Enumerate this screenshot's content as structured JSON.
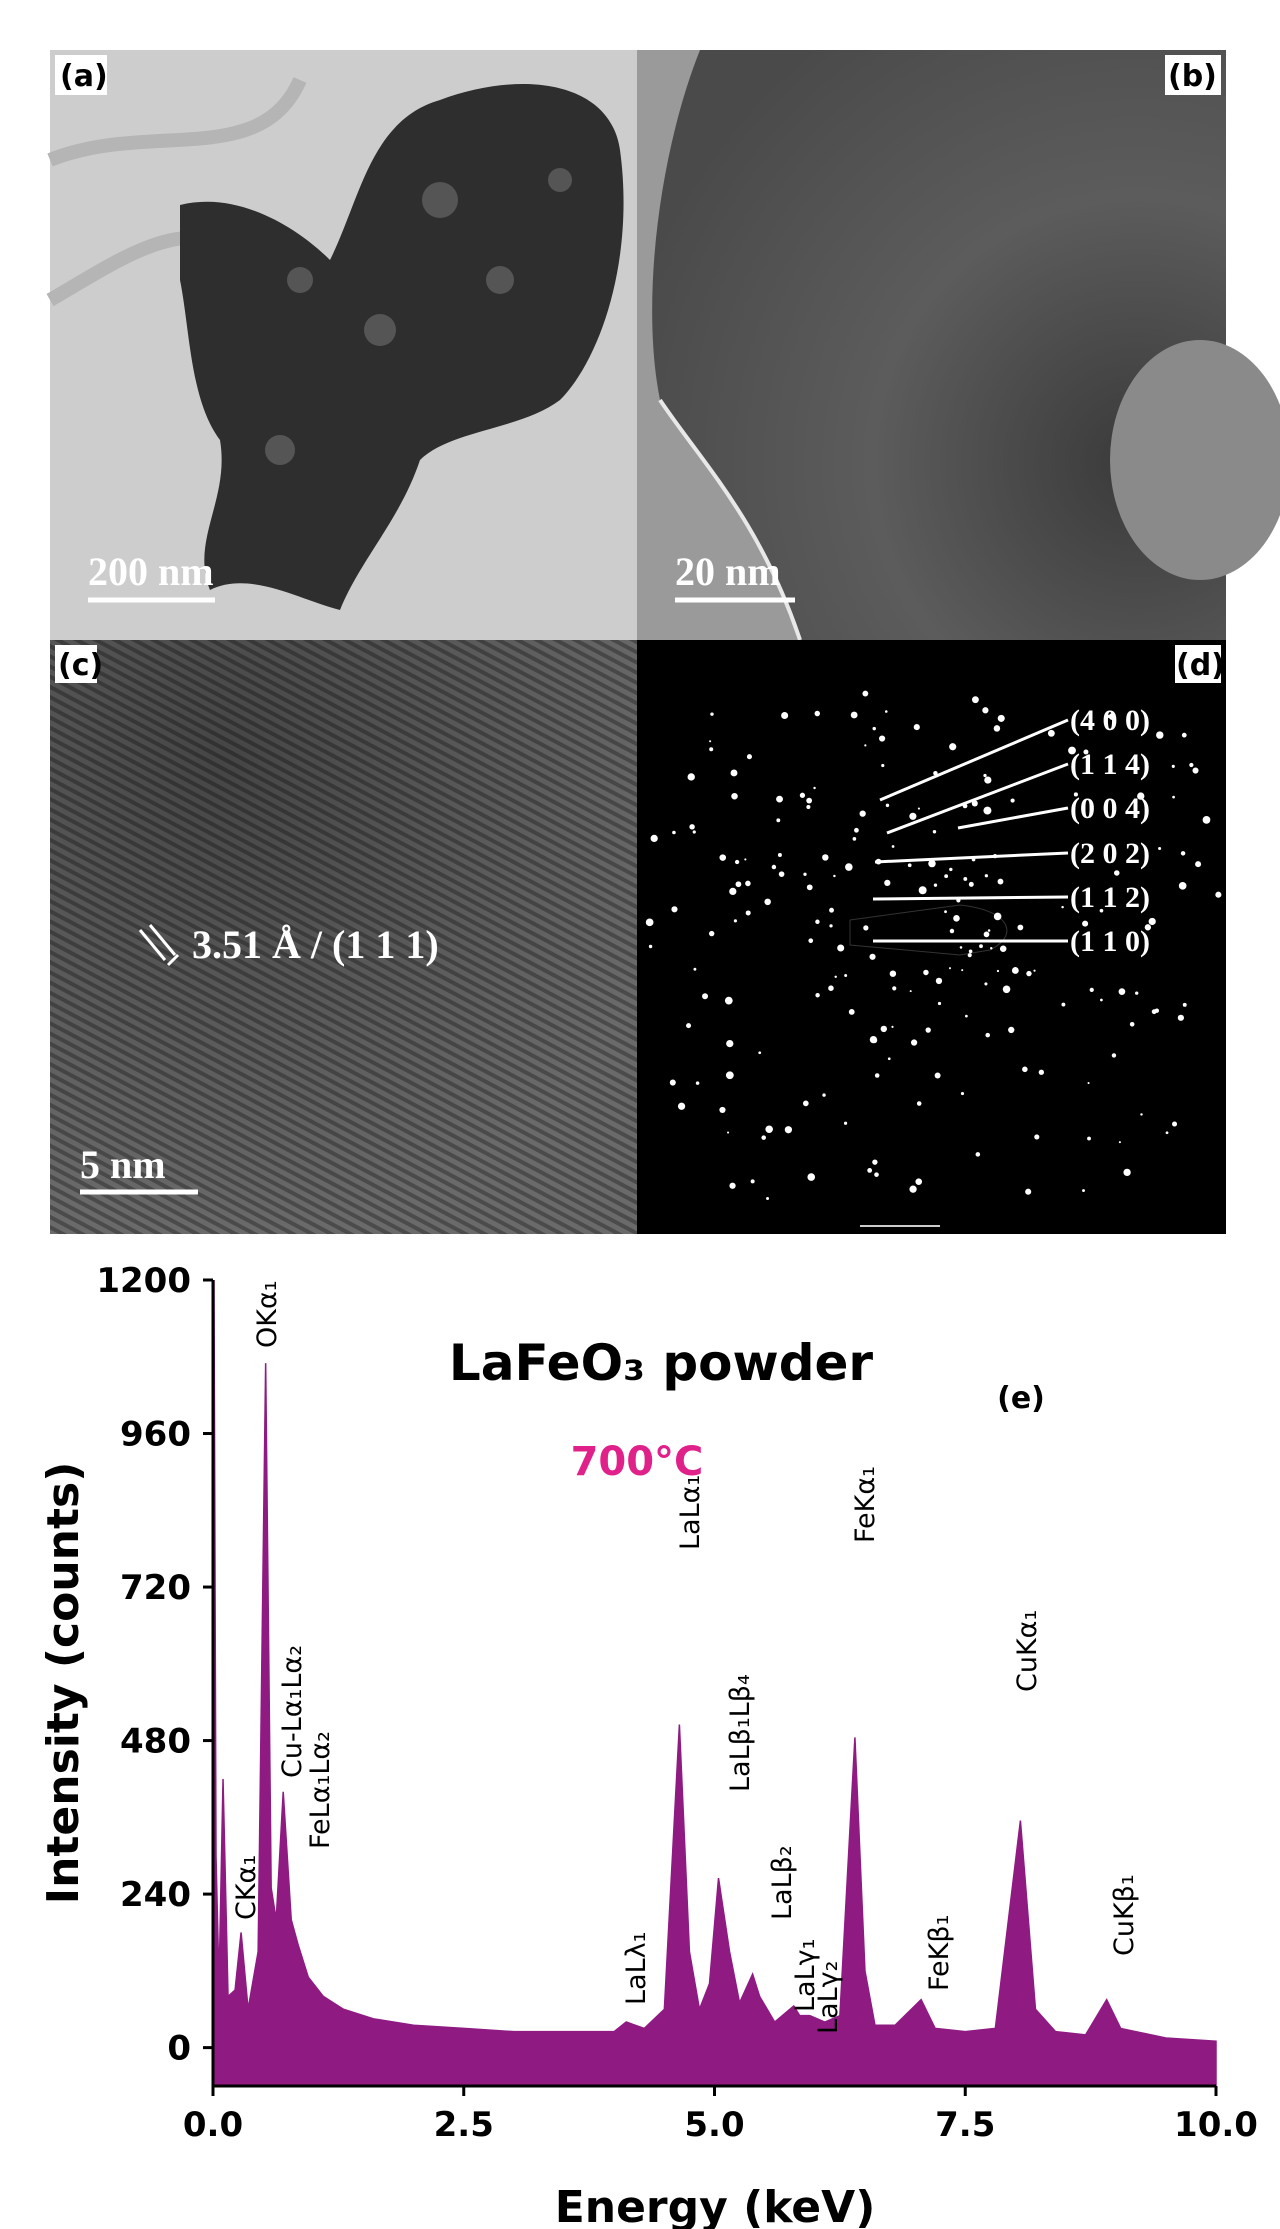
{
  "panels": [
    {
      "label": "(a)",
      "scale_bar": "200 nm"
    },
    {
      "label": "(b)",
      "scale_bar": "20 nm"
    },
    {
      "label": "(c)",
      "scale_bar": "5 nm",
      "annotation": "3.51 Å / (1 1 1)"
    },
    {
      "label": "(d)",
      "spots": [
        "(4 0 0)",
        "(1 1 4)",
        "(0 0 4)",
        "(2 0 2)",
        "(1 1 2)",
        "(1 1 0)"
      ]
    }
  ],
  "chart_data": {
    "type": "area",
    "title": "LaFeO₃ powder",
    "subtitle": "700°C",
    "panel_label": "(e)",
    "x_label": "Energy (keV)",
    "y_label": "Intensity (counts)",
    "color": "#8e1a82",
    "xlim": [
      0,
      10
    ],
    "xticks": [
      {
        "value": 0,
        "label": "0.0"
      },
      2.5,
      {
        "value": 5,
        "label": "5.0"
      },
      7.5,
      {
        "value": 10,
        "label": "10.0"
      }
    ],
    "ylim": [
      -60,
      1200
    ],
    "yticks": [
      0,
      240,
      480,
      720,
      960,
      1200
    ],
    "annotations": [
      "OKα₁",
      "CKα₁",
      "Cu-Lα₁Lα₂",
      "FeLα₁Lα₂",
      "LaLλ₁",
      "LaLα₁",
      "LaLβ₁Lβ₄",
      "LaLβ₂",
      "LaLγ₁",
      "LaLγ₂",
      "FeKα₁",
      "FeKβ₁",
      "CuKα₁",
      "CuKβ₁"
    ],
    "x": [
      0.01,
      0.03,
      0.06,
      0.1,
      0.15,
      0.22,
      0.28,
      0.35,
      0.45,
      0.525,
      0.58,
      0.63,
      0.7,
      0.78,
      0.85,
      0.95,
      1.1,
      1.3,
      1.6,
      2.0,
      2.5,
      3.0,
      3.5,
      4.0,
      4.12,
      4.3,
      4.5,
      4.65,
      4.75,
      4.85,
      4.95,
      5.04,
      5.15,
      5.25,
      5.38,
      5.45,
      5.6,
      5.79,
      5.85,
      5.95,
      6.1,
      6.25,
      6.4,
      6.5,
      6.6,
      6.8,
      7.06,
      7.2,
      7.5,
      7.8,
      8.05,
      8.2,
      8.4,
      8.7,
      8.91,
      9.05,
      9.5,
      10.0
    ],
    "values": [
      1200,
      300,
      100,
      420,
      80,
      90,
      180,
      60,
      150,
      1070,
      250,
      200,
      400,
      200,
      160,
      110,
      80,
      60,
      45,
      35,
      30,
      25,
      25,
      25,
      40,
      30,
      60,
      505,
      150,
      60,
      100,
      265,
      150,
      70,
      115,
      80,
      40,
      65,
      50,
      50,
      40,
      50,
      485,
      120,
      35,
      35,
      75,
      30,
      25,
      30,
      355,
      60,
      25,
      20,
      75,
      30,
      15,
      10
    ]
  }
}
